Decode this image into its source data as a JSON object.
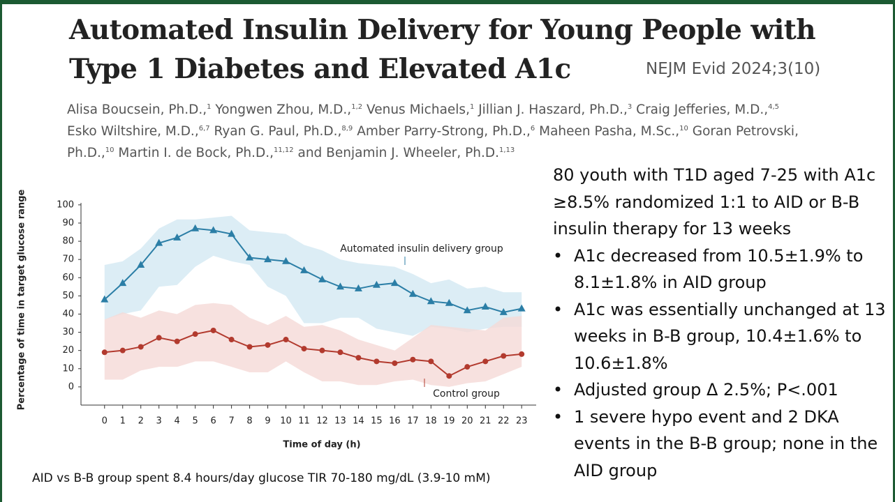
{
  "header": {
    "title_lines": [
      "Automated Insulin Delivery for Young People with",
      "Type 1 Diabetes and Elevated A1c"
    ],
    "citation": "NEJM Evid 2024;3(10)"
  },
  "authors": [
    [
      {
        "name": "Alisa Boucsein, Ph.D.,",
        "aff": "1"
      },
      {
        "name": "Yongwen Zhou, M.D.,",
        "aff": "1,2"
      },
      {
        "name": "Venus Michaels,",
        "aff": "1"
      },
      {
        "name": "Jillian J. Haszard, Ph.D.,",
        "aff": "3"
      },
      {
        "name": "Craig Jefferies, M.D.,",
        "aff": "4,5"
      }
    ],
    [
      {
        "name": "Esko Wiltshire, M.D.,",
        "aff": "6,7"
      },
      {
        "name": "Ryan G. Paul, Ph.D.,",
        "aff": "8,9"
      },
      {
        "name": "Amber Parry-Strong, Ph.D.,",
        "aff": "6"
      },
      {
        "name": "Maheen Pasha, M.Sc.,",
        "aff": "10"
      },
      {
        "name": "Goran Petrovski,",
        "aff": ""
      }
    ],
    [
      {
        "name": "Ph.D.,",
        "aff": "10"
      },
      {
        "name": "Martin I. de Bock, Ph.D.,",
        "aff": "11,12"
      },
      {
        "name": "and Benjamin J. Wheeler, Ph.D.",
        "aff": "1,13"
      }
    ]
  ],
  "chart_data": {
    "type": "line",
    "x_label": "Time of day (h)",
    "y_label": "Percentage of time in target glucose range",
    "x": [
      0,
      1,
      2,
      3,
      4,
      5,
      6,
      7,
      8,
      9,
      10,
      11,
      12,
      13,
      14,
      15,
      16,
      17,
      18,
      19,
      20,
      21,
      22,
      23
    ],
    "xticks": [
      0,
      1,
      2,
      3,
      4,
      5,
      6,
      7,
      8,
      9,
      10,
      11,
      12,
      13,
      14,
      15,
      16,
      17,
      18,
      19,
      20,
      21,
      22,
      23
    ],
    "xlim": [
      -1.3,
      23.8
    ],
    "ylim": [
      -10,
      103
    ],
    "yticks": [
      0,
      10,
      20,
      30,
      40,
      50,
      60,
      70,
      80,
      90,
      100
    ],
    "series": [
      {
        "name": "Automated insulin delivery group",
        "color": "#2b7ea6",
        "band_color": "#d3e9f2",
        "marker": "triangle",
        "values": [
          48,
          57,
          67,
          79,
          82,
          87,
          86,
          84,
          71,
          70,
          69,
          64,
          59,
          55,
          54,
          56,
          57,
          51,
          47,
          46,
          42,
          44,
          41,
          43
        ],
        "upper": [
          67,
          69,
          76,
          87,
          92,
          92,
          93,
          94,
          86,
          85,
          84,
          78,
          75,
          70,
          68,
          67,
          66,
          62,
          57,
          59,
          54,
          55,
          52,
          52
        ],
        "lower": [
          37,
          40,
          42,
          55,
          56,
          66,
          72,
          69,
          67,
          55,
          50,
          35,
          35,
          38,
          38,
          32,
          30,
          28,
          33,
          32,
          30,
          32,
          33,
          33
        ]
      },
      {
        "name": "Control group",
        "color": "#b23a2e",
        "band_color": "#f5d9d7",
        "marker": "circle",
        "values": [
          19,
          20,
          22,
          27,
          25,
          29,
          31,
          26,
          22,
          23,
          26,
          21,
          20,
          19,
          16,
          14,
          13,
          15,
          14,
          6,
          11,
          14,
          17,
          18
        ],
        "upper": [
          37,
          41,
          38,
          42,
          40,
          45,
          46,
          45,
          38,
          34,
          39,
          33,
          34,
          31,
          26,
          23,
          20,
          27,
          34,
          33,
          32,
          31,
          38,
          39
        ],
        "lower": [
          4,
          4,
          9,
          11,
          11,
          14,
          14,
          11,
          8,
          8,
          14,
          8,
          3,
          3,
          1,
          1,
          3,
          4,
          1,
          0,
          2,
          3,
          7,
          11
        ]
      }
    ]
  },
  "summary": {
    "intro": "80 youth with T1D aged 7-25 with A1c ≥8.5% randomized 1:1 to AID or B-B insulin therapy for 13 weeks",
    "bullets": [
      "A1c decreased from 10.5±1.9% to 8.1±1.8% in AID group",
      "A1c was essentially unchanged at 13 weeks in B-B group, 10.4±1.6% to 10.6±1.8%",
      "Adjusted group Δ 2.5%; P<.001",
      "1 severe hypo event and 2 DKA events in the B-B group; none in the AID group"
    ]
  },
  "footnote": "AID vs B-B group spent 8.4 hours/day glucose TIR 70-180 mg/dL (3.9-10 mM)"
}
